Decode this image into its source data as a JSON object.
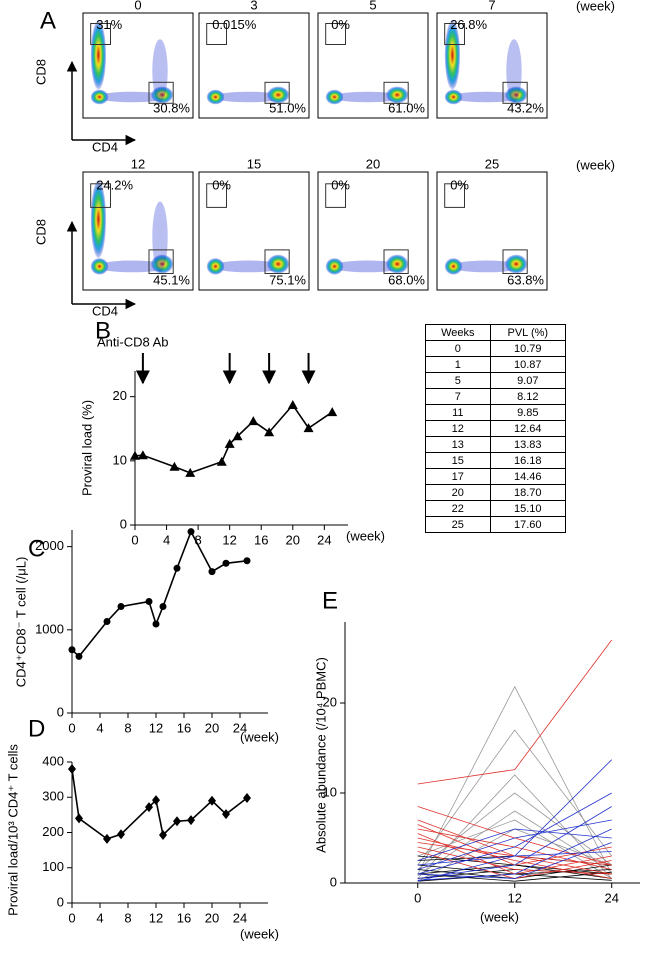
{
  "flow": {
    "panel": "A",
    "x_label": "CD4",
    "y_label": "CD8",
    "unit": "(week)",
    "rows": [
      {
        "weeks": [
          "0",
          "3",
          "5",
          "7"
        ],
        "cd8": [
          "31%",
          "0.015%",
          "0%",
          "26.8%"
        ],
        "cd4": [
          "30.8%",
          "51.0%",
          "61.0%",
          "43.2%"
        ]
      },
      {
        "weeks": [
          "12",
          "15",
          "20",
          "25"
        ],
        "cd8": [
          "24.2%",
          "0%",
          "0%",
          "0%"
        ],
        "cd4": [
          "45.1%",
          "75.1%",
          "68.0%",
          "63.8%"
        ]
      }
    ]
  },
  "table": {
    "header": [
      "Weeks",
      "PVL (%)"
    ],
    "rows": [
      [
        "0",
        "10.79"
      ],
      [
        "1",
        "10.87"
      ],
      [
        "5",
        "9.07"
      ],
      [
        "7",
        "8.12"
      ],
      [
        "11",
        "9.85"
      ],
      [
        "12",
        "12.64"
      ],
      [
        "13",
        "13.83"
      ],
      [
        "15",
        "16.18"
      ],
      [
        "17",
        "14.46"
      ],
      [
        "20",
        "18.70"
      ],
      [
        "22",
        "15.10"
      ],
      [
        "25",
        "17.60"
      ]
    ]
  },
  "chart_data": [
    {
      "type": "line",
      "panel": "B",
      "annotation": "Anti-CD8 Ab",
      "arrows": [
        1,
        12,
        17,
        22
      ],
      "marker": "triangle",
      "color": "#000000",
      "y_label": "Proviral load (%)",
      "x_label": "(week)",
      "x": [
        0,
        1,
        5,
        7,
        11,
        12,
        13,
        15,
        17,
        20,
        22,
        25
      ],
      "values": [
        10.79,
        10.87,
        9.07,
        8.12,
        9.85,
        12.64,
        13.83,
        16.18,
        14.46,
        18.7,
        15.1,
        17.6
      ],
      "xlim": [
        0,
        27
      ],
      "xticks": [
        0,
        4,
        8,
        12,
        16,
        20,
        24
      ],
      "ylim": [
        0,
        24
      ],
      "yticks": [
        0,
        10,
        20
      ]
    },
    {
      "type": "line",
      "panel": "C",
      "marker": "circle",
      "color": "#000000",
      "y_label": "CD4⁺CD8⁻ T cell (/μL)",
      "x_label": "(week)",
      "x": [
        0,
        1,
        5,
        7,
        11,
        12,
        13,
        15,
        17,
        20,
        22,
        25
      ],
      "values": [
        760,
        680,
        1100,
        1280,
        1340,
        1070,
        1280,
        1740,
        2180,
        1700,
        1800,
        1830
      ],
      "xlim": [
        0,
        28
      ],
      "xticks": [
        0,
        4,
        8,
        12,
        16,
        20,
        24
      ],
      "ylim": [
        0,
        2200
      ],
      "yticks": [
        0,
        1000,
        2000
      ]
    },
    {
      "type": "line",
      "panel": "D",
      "marker": "diamond",
      "color": "#000000",
      "y_label": "Proviral load/10³ CD4⁺ T cells",
      "x_label": "(week)",
      "x": [
        0,
        1,
        5,
        7,
        11,
        12,
        13,
        15,
        17,
        20,
        22,
        25
      ],
      "values": [
        380,
        240,
        182,
        195,
        272,
        292,
        193,
        232,
        235,
        290,
        252,
        298
      ],
      "xlim": [
        0,
        28
      ],
      "xticks": [
        0,
        4,
        8,
        12,
        16,
        20,
        24
      ],
      "ylim": [
        0,
        400
      ],
      "yticks": [
        0,
        100,
        200,
        300,
        400
      ]
    },
    {
      "type": "line",
      "panel": "E",
      "y_label": "Absolute abundance (/10⁴ PBMC)",
      "x_label": "(week)",
      "x": [
        0,
        12,
        24
      ],
      "xlim": [
        -9,
        27.5
      ],
      "xticks": [
        0,
        12,
        24
      ],
      "ylim": [
        0,
        29
      ],
      "yticks": [
        0,
        10,
        20
      ],
      "series": [
        {
          "color": "#999999",
          "values": [
            1,
            21.8,
            1
          ]
        },
        {
          "color": "#999999",
          "values": [
            2,
            17,
            3
          ]
        },
        {
          "color": "#999999",
          "values": [
            0.5,
            12,
            0.5
          ]
        },
        {
          "color": "#999999",
          "values": [
            1.5,
            10,
            2
          ]
        },
        {
          "color": "#999999",
          "values": [
            0.8,
            8,
            1.2
          ]
        },
        {
          "color": "#999999",
          "values": [
            3,
            7,
            0.5
          ]
        },
        {
          "color": "#999999",
          "values": [
            0.2,
            6,
            2
          ]
        },
        {
          "color": "#000000",
          "values": [
            2,
            1,
            1.5
          ]
        },
        {
          "color": "#000000",
          "values": [
            1,
            2,
            0.5
          ]
        },
        {
          "color": "#000000",
          "values": [
            0.5,
            1.5,
            1
          ]
        },
        {
          "color": "#000000",
          "values": [
            1.5,
            0.5,
            2
          ]
        },
        {
          "color": "#000000",
          "values": [
            3,
            2,
            1
          ]
        },
        {
          "color": "#000000",
          "values": [
            0.2,
            1,
            0.3
          ]
        },
        {
          "color": "#000000",
          "values": [
            2.5,
            3,
            2
          ]
        },
        {
          "color": "#000000",
          "values": [
            1,
            0.2,
            1.2
          ]
        },
        {
          "color": "#e0302a",
          "values": [
            11,
            12.6,
            27
          ]
        },
        {
          "color": "#e0302a",
          "values": [
            8.5,
            5,
            2
          ]
        },
        {
          "color": "#e0302a",
          "values": [
            7,
            3,
            1
          ]
        },
        {
          "color": "#e0302a",
          "values": [
            6.5,
            2,
            4
          ]
        },
        {
          "color": "#e0302a",
          "values": [
            6,
            4,
            1.5
          ]
        },
        {
          "color": "#e0302a",
          "values": [
            5.5,
            1,
            3
          ]
        },
        {
          "color": "#e0302a",
          "values": [
            5,
            2.5,
            0.5
          ]
        },
        {
          "color": "#e0302a",
          "values": [
            4.5,
            3,
            2
          ]
        },
        {
          "color": "#e0302a",
          "values": [
            4,
            1.5,
            1
          ]
        },
        {
          "color": "#e0302a",
          "values": [
            3.5,
            0.5,
            2.5
          ]
        },
        {
          "color": "#2233cc",
          "values": [
            2,
            3,
            13.7
          ]
        },
        {
          "color": "#2233cc",
          "values": [
            1,
            4,
            10
          ]
        },
        {
          "color": "#2233cc",
          "values": [
            0.5,
            2,
            8.5
          ]
        },
        {
          "color": "#2233cc",
          "values": [
            1.5,
            5,
            7
          ]
        },
        {
          "color": "#2233cc",
          "values": [
            0.3,
            1,
            6
          ]
        },
        {
          "color": "#2233cc",
          "values": [
            2.5,
            6,
            5
          ]
        },
        {
          "color": "#2233cc",
          "values": [
            1,
            0.5,
            4.5
          ]
        },
        {
          "color": "#2233cc",
          "values": [
            0.2,
            3,
            3.5
          ]
        }
      ]
    }
  ]
}
